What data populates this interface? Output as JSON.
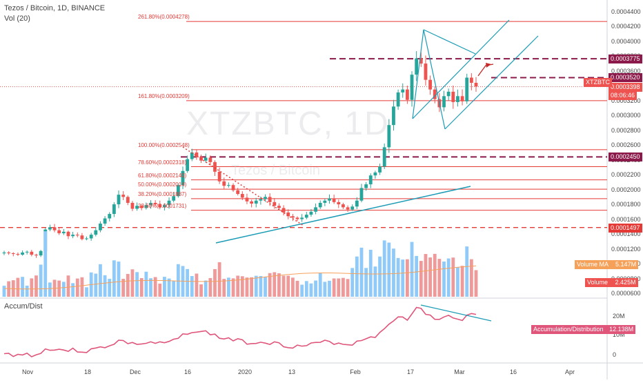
{
  "header": {
    "title": "Tezos / Bitcoin, 1D, BINANCE",
    "vol": "Vol (20)",
    "indicator": "Accum/Dist"
  },
  "watermark": {
    "symbol": "XTZBTC, 1D",
    "name": "Tezos / Bitcoin"
  },
  "colors": {
    "up": "#26a69a",
    "down": "#ef5350",
    "vol_up": "#90caf9",
    "vol_down": "#ef9a9a",
    "fib": "#e53935",
    "dash": "#8b1a4a",
    "trend": "#1a9bb5",
    "ad": "#e0557a",
    "vol_ma": "#f6a15a"
  },
  "price_axis": {
    "labels": [
      "0.0004400",
      "0.0004200",
      "0.0004000",
      "0.0003800",
      "0.0003600",
      "0.0003400",
      "0.0003200",
      "0.0003000",
      "0.0002800",
      "0.0002600",
      "0.0002400",
      "0.0002200",
      "0.0002000",
      "0.0001800",
      "0.0001600",
      "0.0001400",
      "0.0001200",
      "0.0001000",
      "0.0000800",
      "0.0000600"
    ]
  },
  "price_tags": [
    {
      "text": "0.0003775",
      "price": 0.0003775
    },
    {
      "text": "0.0003520",
      "price": 0.000352
    },
    {
      "text": "0.0003398",
      "price": 0.0003398
    },
    {
      "text": "08:06:46",
      "price": 0.000328
    },
    {
      "text": "0.0002450",
      "price": 0.000245
    },
    {
      "text": "0.0001497",
      "price": 0.0001497
    }
  ],
  "symbol_tag": "XTZBTC",
  "volume_tags": {
    "ma": "Volume MA",
    "ma_val": "5.147M",
    "vol": "Volume",
    "vol_val": "2.425M"
  },
  "ad_axis": {
    "labels": [
      "20M",
      "10M",
      "0"
    ]
  },
  "ad_tag": {
    "name": "Accumulation/Distribution",
    "value": "12.138M"
  },
  "fib_labels": [
    {
      "text": "261.80%(0.0004278)",
      "price": 0.0004278
    },
    {
      "text": "161.80%(0.0003209)",
      "price": 0.0003209
    },
    {
      "text": "100.00%(0.0002548)",
      "price": 0.0002548
    },
    {
      "text": "78.60%(0.0002318)",
      "price": 0.0002318
    },
    {
      "text": "61.80%(0.0002140)",
      "price": 0.000214
    },
    {
      "text": "50.00%(0.0002014)",
      "price": 0.0002014
    },
    {
      "text": "38.20%(0.0001887)",
      "price": 0.0001887
    },
    {
      "text": "23.60%(0.0001731)",
      "price": 0.0001731
    }
  ],
  "x_labels": [
    "Nov",
    "18",
    "Dec",
    "16",
    "2020",
    "13",
    "Feb",
    "17",
    "Mar",
    "16",
    "Apr"
  ],
  "chart_data": {
    "type": "candlestick",
    "title": "Tezos / Bitcoin, 1D, BINANCE",
    "x_ticks": [
      "Nov",
      "18",
      "Dec",
      "16",
      "2020",
      "13",
      "Feb",
      "17",
      "Mar",
      "16",
      "Apr"
    ],
    "y_range": [
      6e-05,
      0.00044
    ],
    "levels": {
      "resistance_dashed": [
        0.0003775,
        0.000352,
        0.000245
      ],
      "support_dashed": [
        0.0001497
      ],
      "last_price": 0.0003398
    },
    "fibonacci": [
      {
        "level": "261.80%",
        "price": 0.0004278
      },
      {
        "level": "161.80%",
        "price": 0.0003209
      },
      {
        "level": "100.00%",
        "price": 0.0002548
      },
      {
        "level": "78.60%",
        "price": 0.0002318
      },
      {
        "level": "61.80%",
        "price": 0.000214
      },
      {
        "level": "50.00%",
        "price": 0.0002014
      },
      {
        "level": "38.20%",
        "price": 0.0001887
      },
      {
        "level": "23.60%",
        "price": 0.0001731
      }
    ],
    "price_series": [
      0.000116,
      0.000115,
      0.000114,
      0.000113,
      0.000116,
      0.000117,
      0.000113,
      0.000112,
      0.000118,
      0.000147,
      0.00015,
      0.000146,
      0.000142,
      0.000144,
      0.000138,
      0.00014,
      0.000139,
      0.000134,
      0.000135,
      0.00014,
      0.000146,
      0.000155,
      0.000162,
      0.000168,
      0.000181,
      0.000194,
      0.000191,
      0.000183,
      0.000175,
      0.000179,
      0.000176,
      0.00018,
      0.000183,
      0.000181,
      0.000177,
      0.00018,
      0.000186,
      0.000192,
      0.000207,
      0.000226,
      0.000242,
      0.000251,
      0.000245,
      0.00024,
      0.000244,
      0.000238,
      0.000225,
      0.000212,
      0.000206,
      0.000207,
      0.0002,
      0.000195,
      0.00019,
      0.000185,
      0.000182,
      0.000186,
      0.000188,
      0.000191,
      0.000184,
      0.000179,
      0.000176,
      0.00017,
      0.000165,
      0.000163,
      0.000161,
      0.000163,
      0.000167,
      0.000171,
      0.000177,
      0.000183,
      0.000186,
      0.000189,
      0.000184,
      0.000181,
      0.000177,
      0.000174,
      0.000178,
      0.000186,
      0.000203,
      0.000208,
      0.00022,
      0.000224,
      0.000232,
      0.000258,
      0.000288,
      0.000313,
      0.000332,
      0.000336,
      0.000322,
      0.000356,
      0.000378,
      0.000371,
      0.000349,
      0.000336,
      0.000323,
      0.000312,
      0.000327,
      0.000333,
      0.000319,
      0.000327,
      0.00032,
      0.000352,
      0.000345,
      0.00034
    ]
  }
}
